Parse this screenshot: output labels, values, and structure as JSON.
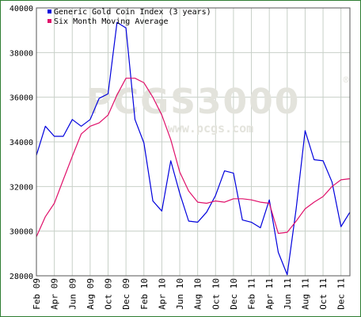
{
  "watermark": {
    "brand": "PCGS3000",
    "registered": "®",
    "url": "www.pcgs.com"
  },
  "chart_data": {
    "type": "line",
    "title": "",
    "xlabel": "",
    "ylabel": "",
    "ylim": [
      28000,
      40000
    ],
    "yticks": [
      28000,
      30000,
      32000,
      34000,
      36000,
      38000,
      40000
    ],
    "grid": true,
    "legend_position": "top-left",
    "x": [
      "Feb 09",
      "Mar 09",
      "Apr 09",
      "May 09",
      "Jun 09",
      "Jul 09",
      "Aug 09",
      "Sep 09",
      "Oct 09",
      "Nov 09",
      "Dec 09",
      "Jan 10",
      "Feb 10",
      "Mar 10",
      "Apr 10",
      "May 10",
      "Jun 10",
      "Jul 10",
      "Aug 10",
      "Sep 10",
      "Oct 10",
      "Nov 10",
      "Dec 10",
      "Jan 11",
      "Feb 11",
      "Mar 11",
      "Apr 11",
      "May 11",
      "Jun 11",
      "Jul 11",
      "Aug 11",
      "Sep 11",
      "Oct 11",
      "Nov 11",
      "Dec 11",
      "Jan 12"
    ],
    "tick_labels": [
      "Feb 09",
      "Apr 09",
      "Jun 09",
      "Aug 09",
      "Oct 09",
      "Dec 09",
      "Feb 10",
      "Apr 10",
      "Jun 10",
      "Aug 10",
      "Oct 10",
      "Dec 10",
      "Feb 11",
      "Apr 11",
      "Jun 11",
      "Aug 11",
      "Oct 11",
      "Dec 11"
    ],
    "series": [
      {
        "name": "Generic Gold Coin Index (3 years)",
        "color": "#0000dd",
        "values": [
          33400,
          34700,
          34250,
          34250,
          35000,
          34700,
          35000,
          35950,
          36150,
          39350,
          39100,
          35000,
          33950,
          31350,
          30900,
          33150,
          31700,
          30450,
          30400,
          30850,
          31600,
          32700,
          32600,
          30500,
          30400,
          30150,
          31400,
          29050,
          28050,
          31000,
          34500,
          33200,
          33150,
          32200,
          30200,
          30850
        ]
      },
      {
        "name": "Six Month Moving Average",
        "color": "#e0106a",
        "values": [
          29750,
          30650,
          31250,
          32300,
          33350,
          34350,
          34700,
          34850,
          35200,
          36100,
          36850,
          36850,
          36650,
          36000,
          35200,
          34100,
          32650,
          31800,
          31300,
          31250,
          31350,
          31300,
          31450,
          31450,
          31400,
          31300,
          31250,
          29900,
          29950,
          30450,
          31000,
          31300,
          31550,
          32000,
          32300,
          32350
        ]
      }
    ]
  }
}
